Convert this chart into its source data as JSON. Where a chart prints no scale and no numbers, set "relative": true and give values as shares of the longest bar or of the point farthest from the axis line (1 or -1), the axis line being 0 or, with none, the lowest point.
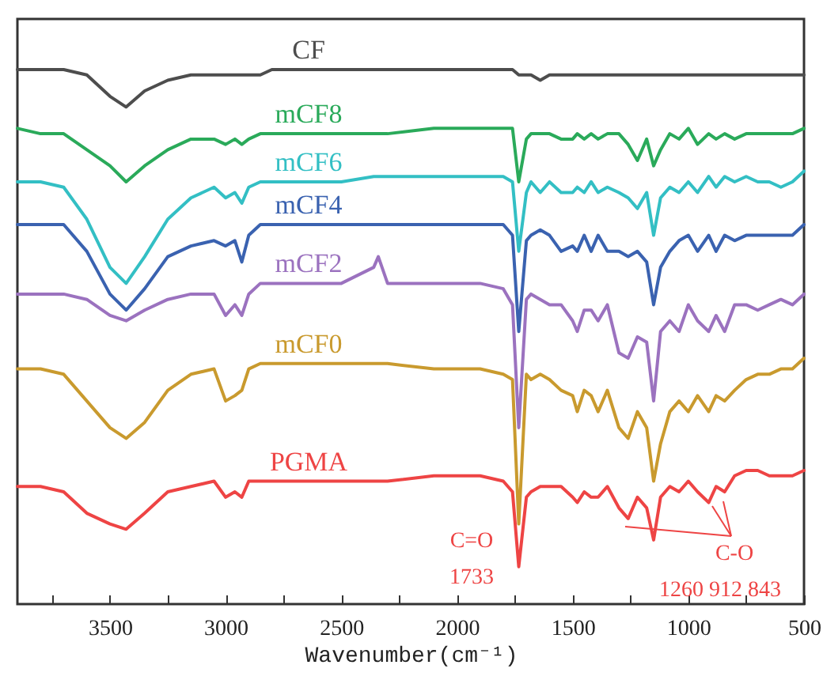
{
  "chart_data": {
    "type": "line",
    "relative": true,
    "xlabel": "Wavenumber(cm⁻¹)",
    "xlim": [
      3900,
      500
    ],
    "xticks": [
      3500,
      3000,
      2500,
      2000,
      1500,
      1000,
      500,
      {
        "value": 3750,
        "label": null
      },
      {
        "value": 3250,
        "label": null
      },
      {
        "value": 2750,
        "label": null
      },
      {
        "value": 2250,
        "label": null
      },
      {
        "value": 1750,
        "label": null
      },
      {
        "value": 1250,
        "label": null
      },
      {
        "value": 750,
        "label": null
      }
    ],
    "x": [
      3900,
      3800,
      3700,
      3600,
      3500,
      3430,
      3350,
      3250,
      3150,
      3050,
      3000,
      2960,
      2930,
      2900,
      2850,
      2800,
      2700,
      2500,
      2360,
      2340,
      2300,
      2100,
      2000,
      1900,
      1800,
      1760,
      1733,
      1700,
      1680,
      1640,
      1600,
      1550,
      1500,
      1480,
      1450,
      1420,
      1390,
      1350,
      1300,
      1260,
      1220,
      1180,
      1150,
      1120,
      1080,
      1040,
      1000,
      960,
      912,
      880,
      843,
      800,
      750,
      700,
      650,
      600,
      550,
      500
    ],
    "series": [
      {
        "name": "CF",
        "color": "#4d4d4d",
        "values": [
          1.0,
          1.0,
          1.0,
          0.99,
          0.95,
          0.93,
          0.96,
          0.98,
          0.99,
          0.99,
          0.99,
          0.99,
          0.99,
          0.99,
          0.99,
          1.0,
          1.0,
          1.0,
          1.0,
          1.0,
          1.0,
          1.0,
          1.0,
          1.0,
          1.0,
          1.0,
          0.99,
          0.99,
          0.99,
          0.98,
          0.99,
          0.99,
          0.99,
          0.99,
          0.99,
          0.99,
          0.99,
          0.99,
          0.99,
          0.99,
          0.99,
          0.99,
          0.99,
          0.99,
          0.99,
          0.99,
          0.99,
          0.99,
          0.99,
          0.99,
          0.99,
          0.99,
          0.99,
          0.99,
          0.99,
          0.99,
          0.99,
          0.99
        ]
      },
      {
        "name": "mCF8",
        "color": "#2aaa5a",
        "values": [
          0.89,
          0.88,
          0.88,
          0.85,
          0.82,
          0.79,
          0.82,
          0.85,
          0.87,
          0.87,
          0.86,
          0.87,
          0.86,
          0.87,
          0.88,
          0.88,
          0.88,
          0.88,
          0.88,
          0.88,
          0.88,
          0.89,
          0.89,
          0.89,
          0.89,
          0.89,
          0.79,
          0.87,
          0.88,
          0.88,
          0.88,
          0.87,
          0.87,
          0.88,
          0.87,
          0.88,
          0.87,
          0.88,
          0.88,
          0.86,
          0.83,
          0.87,
          0.82,
          0.85,
          0.88,
          0.87,
          0.89,
          0.86,
          0.88,
          0.87,
          0.88,
          0.87,
          0.88,
          0.88,
          0.88,
          0.88,
          0.88,
          0.89
        ]
      },
      {
        "name": "mCF6",
        "color": "#33bfc4",
        "values": [
          0.79,
          0.79,
          0.78,
          0.72,
          0.63,
          0.6,
          0.65,
          0.72,
          0.76,
          0.78,
          0.76,
          0.77,
          0.75,
          0.78,
          0.79,
          0.79,
          0.79,
          0.79,
          0.8,
          0.8,
          0.8,
          0.8,
          0.8,
          0.8,
          0.8,
          0.79,
          0.66,
          0.77,
          0.79,
          0.77,
          0.79,
          0.77,
          0.77,
          0.78,
          0.77,
          0.79,
          0.77,
          0.78,
          0.77,
          0.76,
          0.74,
          0.77,
          0.69,
          0.76,
          0.78,
          0.77,
          0.79,
          0.77,
          0.8,
          0.78,
          0.8,
          0.79,
          0.8,
          0.79,
          0.79,
          0.78,
          0.79,
          0.81
        ]
      },
      {
        "name": "mCF4",
        "color": "#3a62b0",
        "values": [
          0.71,
          0.71,
          0.71,
          0.66,
          0.58,
          0.55,
          0.59,
          0.65,
          0.67,
          0.68,
          0.67,
          0.68,
          0.64,
          0.69,
          0.71,
          0.71,
          0.71,
          0.71,
          0.71,
          0.71,
          0.71,
          0.71,
          0.71,
          0.71,
          0.71,
          0.69,
          0.51,
          0.68,
          0.69,
          0.7,
          0.69,
          0.66,
          0.67,
          0.66,
          0.69,
          0.66,
          0.69,
          0.66,
          0.66,
          0.65,
          0.66,
          0.64,
          0.56,
          0.63,
          0.66,
          0.68,
          0.69,
          0.66,
          0.69,
          0.66,
          0.69,
          0.68,
          0.69,
          0.69,
          0.69,
          0.69,
          0.69,
          0.71
        ]
      },
      {
        "name": "mCF2",
        "color": "#9b72bf",
        "values": [
          0.58,
          0.58,
          0.58,
          0.57,
          0.54,
          0.53,
          0.55,
          0.57,
          0.58,
          0.58,
          0.54,
          0.56,
          0.54,
          0.58,
          0.6,
          0.6,
          0.6,
          0.6,
          0.63,
          0.65,
          0.6,
          0.6,
          0.6,
          0.6,
          0.59,
          0.56,
          0.33,
          0.57,
          0.58,
          0.57,
          0.56,
          0.56,
          0.53,
          0.51,
          0.55,
          0.55,
          0.53,
          0.56,
          0.47,
          0.46,
          0.5,
          0.49,
          0.38,
          0.51,
          0.53,
          0.51,
          0.56,
          0.53,
          0.51,
          0.54,
          0.51,
          0.56,
          0.56,
          0.55,
          0.56,
          0.57,
          0.56,
          0.58
        ]
      },
      {
        "name": "mCF0",
        "color": "#c99a2e",
        "values": [
          0.44,
          0.44,
          0.43,
          0.38,
          0.33,
          0.31,
          0.34,
          0.4,
          0.43,
          0.44,
          0.38,
          0.39,
          0.4,
          0.44,
          0.45,
          0.45,
          0.45,
          0.45,
          0.45,
          0.45,
          0.45,
          0.44,
          0.44,
          0.44,
          0.43,
          0.42,
          0.15,
          0.43,
          0.42,
          0.43,
          0.42,
          0.4,
          0.39,
          0.36,
          0.4,
          0.39,
          0.36,
          0.4,
          0.33,
          0.31,
          0.36,
          0.33,
          0.23,
          0.3,
          0.36,
          0.38,
          0.36,
          0.39,
          0.36,
          0.39,
          0.38,
          0.4,
          0.42,
          0.43,
          0.43,
          0.44,
          0.44,
          0.46
        ]
      },
      {
        "name": "PGMA",
        "color": "#ee4444",
        "values": [
          0.22,
          0.22,
          0.21,
          0.17,
          0.15,
          0.14,
          0.17,
          0.21,
          0.22,
          0.23,
          0.2,
          0.21,
          0.2,
          0.23,
          0.23,
          0.23,
          0.23,
          0.23,
          0.23,
          0.23,
          0.23,
          0.24,
          0.24,
          0.24,
          0.23,
          0.21,
          0.07,
          0.2,
          0.21,
          0.22,
          0.22,
          0.22,
          0.2,
          0.19,
          0.21,
          0.2,
          0.2,
          0.22,
          0.18,
          0.16,
          0.2,
          0.18,
          0.12,
          0.2,
          0.22,
          0.21,
          0.23,
          0.21,
          0.19,
          0.22,
          0.21,
          0.24,
          0.25,
          0.25,
          0.24,
          0.24,
          0.24,
          0.25
        ]
      }
    ],
    "annotations": [
      "C=O",
      "1733",
      "C-O",
      "1260 912 843"
    ]
  }
}
